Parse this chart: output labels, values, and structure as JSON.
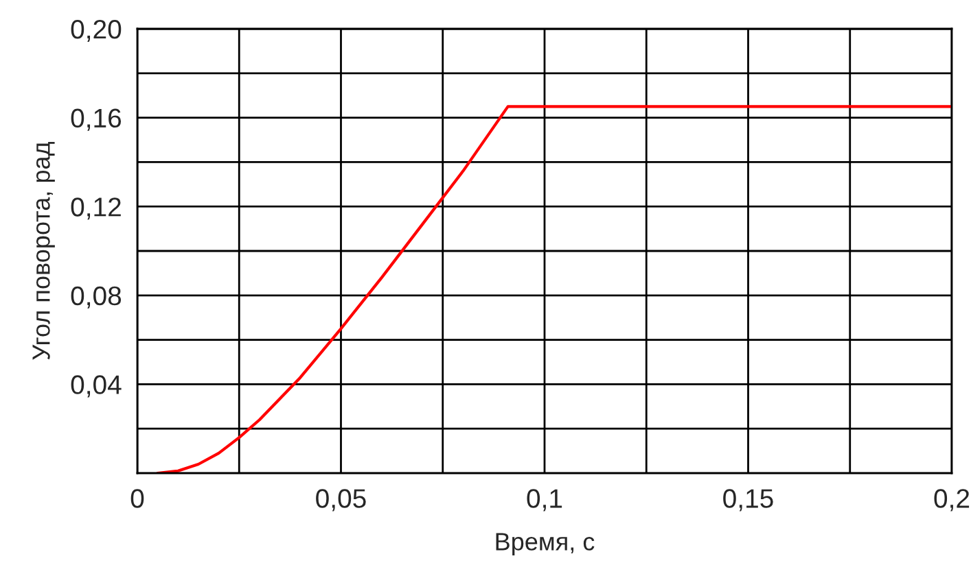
{
  "chart_data": {
    "type": "line",
    "xlabel": "Время, с",
    "ylabel": "Угол поворота, рад",
    "x": [
      0.005,
      0.01,
      0.015,
      0.02,
      0.025,
      0.03,
      0.04,
      0.05,
      0.06,
      0.07,
      0.08,
      0.091,
      0.2
    ],
    "series": [
      {
        "color": "#ff0000",
        "values": [
          0,
          0.001,
          0.004,
          0.009,
          0.016,
          0.024,
          0.043,
          0.065,
          0.088,
          0.112,
          0.136,
          0.165,
          0.165
        ]
      }
    ],
    "xlim": [
      0,
      0.2
    ],
    "ylim": [
      0,
      0.2
    ],
    "xticks": [
      {
        "value": 0,
        "label": "0"
      },
      {
        "value": 0.025,
        "label": null
      },
      {
        "value": 0.05,
        "label": "0,05"
      },
      {
        "value": 0.075,
        "label": null
      },
      {
        "value": 0.1,
        "label": "0,1"
      },
      {
        "value": 0.125,
        "label": null
      },
      {
        "value": 0.15,
        "label": "0,15"
      },
      {
        "value": 0.175,
        "label": null
      },
      {
        "value": 0.2,
        "label": "0,2"
      }
    ],
    "yticks": [
      {
        "value": 0.02,
        "label": null
      },
      {
        "value": 0.04,
        "label": "0,04"
      },
      {
        "value": 0.06,
        "label": null
      },
      {
        "value": 0.08,
        "label": "0,08"
      },
      {
        "value": 0.1,
        "label": null
      },
      {
        "value": 0.12,
        "label": "0,12"
      },
      {
        "value": 0.14,
        "label": null
      },
      {
        "value": 0.16,
        "label": "0,16"
      },
      {
        "value": 0.18,
        "label": null
      },
      {
        "value": 0.2,
        "label": "0,20"
      }
    ],
    "grid": true,
    "marker": "none",
    "line_style": "solid"
  }
}
